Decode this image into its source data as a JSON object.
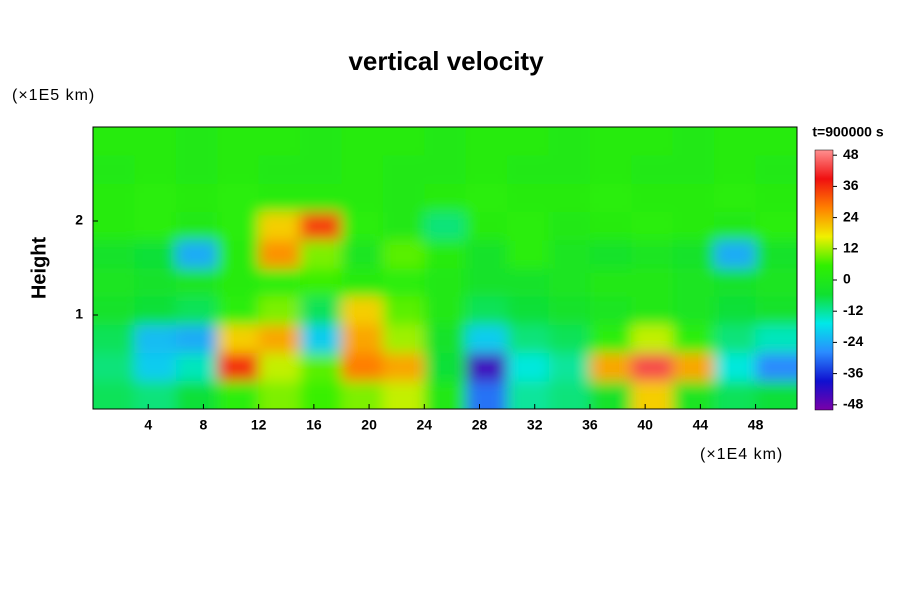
{
  "chart_data": {
    "type": "contour",
    "title": "vertical velocity",
    "y_unit": "(×1E5 km)",
    "y_label": "Height",
    "x_unit": "(×1E4 km)",
    "time_label": "t=900000 s",
    "xlim": [
      0,
      51
    ],
    "ylim": [
      0,
      3
    ],
    "xticks": [
      4,
      8,
      12,
      16,
      20,
      24,
      28,
      32,
      36,
      40,
      44,
      48
    ],
    "yticks": [
      1,
      2
    ],
    "clim": [
      -50,
      50
    ],
    "cbar_ticks": [
      -48,
      -36,
      -24,
      -12,
      0,
      12,
      24,
      36,
      48
    ],
    "colorscale": [
      "#7a00a8",
      "#1010d0",
      "#2a8cff",
      "#00e8e8",
      "#10e030",
      "#30f000",
      "#f0f000",
      "#ff8000",
      "#f01010",
      "#ff9090"
    ],
    "x": [
      1.5,
      4.5,
      7.5,
      10.5,
      13.5,
      16.5,
      19.5,
      22.5,
      25.5,
      28.5,
      31.5,
      34.5,
      37.5,
      40.5,
      43.5,
      46.5,
      49.5
    ],
    "y": [
      0.15,
      0.45,
      0.75,
      1.05,
      1.35,
      1.65,
      1.95,
      2.25,
      2.55,
      2.85
    ],
    "z": [
      [
        -8,
        -10,
        -6,
        4,
        10,
        6,
        10,
        14,
        0,
        -30,
        -12,
        -10,
        -4,
        20,
        -2,
        -8,
        -6
      ],
      [
        -10,
        -20,
        -14,
        36,
        14,
        8,
        28,
        24,
        -6,
        -44,
        -16,
        -12,
        24,
        44,
        24,
        -16,
        -28
      ],
      [
        -8,
        -22,
        -24,
        20,
        24,
        -20,
        24,
        12,
        -4,
        -20,
        -10,
        -8,
        4,
        14,
        4,
        -10,
        -14
      ],
      [
        -4,
        -6,
        -8,
        4,
        10,
        -8,
        20,
        8,
        0,
        -8,
        -6,
        -4,
        -2,
        0,
        -2,
        -6,
        -4
      ],
      [
        -2,
        -4,
        -2,
        2,
        4,
        6,
        2,
        4,
        0,
        -4,
        -4,
        -2,
        0,
        0,
        -2,
        -4,
        -2
      ],
      [
        -4,
        -6,
        -24,
        2,
        26,
        10,
        -2,
        8,
        2,
        -4,
        4,
        -2,
        -4,
        -2,
        -4,
        -24,
        -4
      ],
      [
        2,
        4,
        0,
        4,
        20,
        34,
        4,
        0,
        -10,
        2,
        4,
        0,
        2,
        4,
        2,
        0,
        4
      ],
      [
        2,
        4,
        2,
        4,
        2,
        2,
        2,
        0,
        2,
        4,
        2,
        2,
        4,
        2,
        2,
        4,
        2
      ],
      [
        0,
        2,
        0,
        2,
        0,
        0,
        2,
        0,
        0,
        2,
        0,
        0,
        2,
        0,
        0,
        2,
        0
      ],
      [
        2,
        2,
        0,
        2,
        2,
        0,
        2,
        2,
        0,
        2,
        2,
        0,
        2,
        2,
        0,
        2,
        2
      ]
    ]
  }
}
